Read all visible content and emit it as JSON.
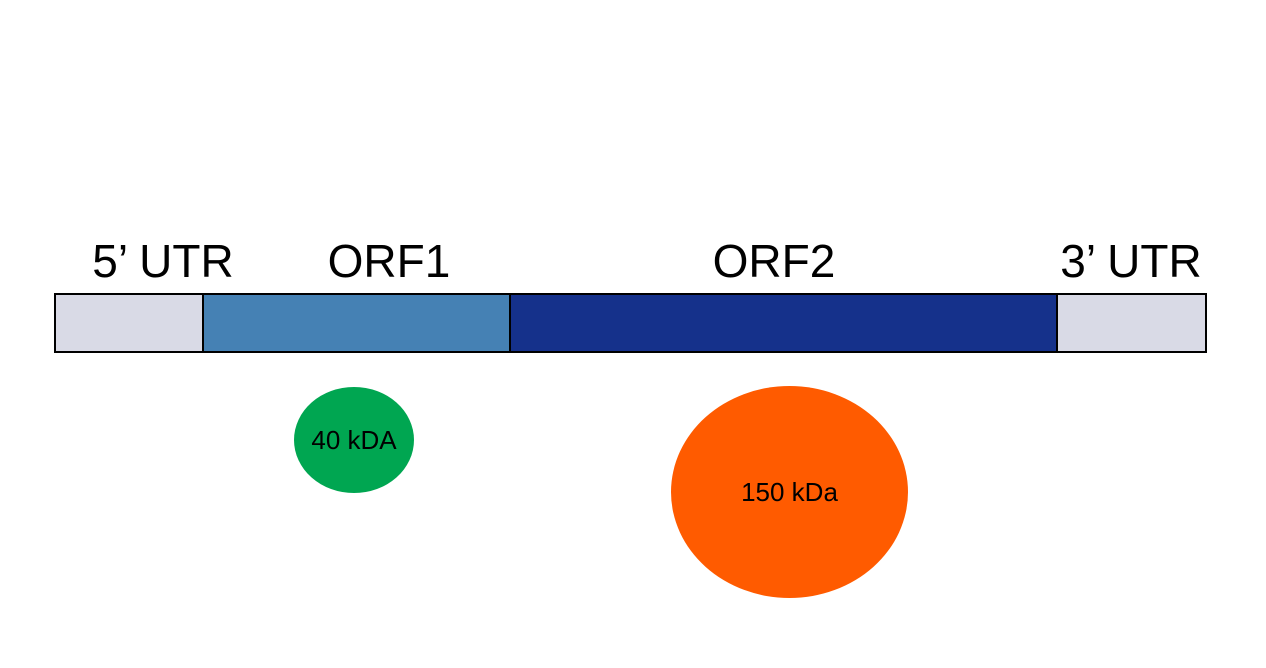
{
  "genome": {
    "segments": [
      {
        "id": "5utr",
        "label": "5’ UTR",
        "color": "#d9dae6"
      },
      {
        "id": "orf1",
        "label": "ORF1",
        "color": "#4581b4"
      },
      {
        "id": "orf2",
        "label": "ORF2",
        "color": "#15318b"
      },
      {
        "id": "3utr",
        "label": "3’ UTR",
        "color": "#d9dae6"
      }
    ]
  },
  "proteins": [
    {
      "source": "ORF1",
      "label": "40 kDA",
      "color": "#00a651"
    },
    {
      "source": "ORF2",
      "label": "150 kDa",
      "color": "#ff5b00"
    }
  ]
}
